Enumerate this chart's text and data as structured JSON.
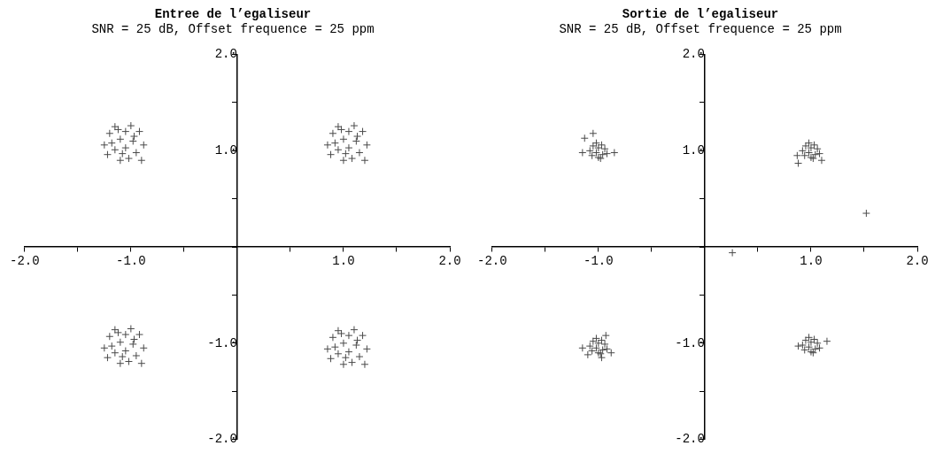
{
  "chart_data": [
    {
      "type": "scatter",
      "title": "Entree de l’egaliseur",
      "subtitle": "SNR = 25 dB, Offset frequence = 25 ppm",
      "marker": "cross",
      "xlim": [
        -2,
        2
      ],
      "ylim": [
        -2,
        2
      ],
      "xticks": [
        {
          "value": -2,
          "label": "-2.0"
        },
        {
          "value": -1.5,
          "label": null
        },
        {
          "value": -1,
          "label": "-1.0"
        },
        {
          "value": -0.5,
          "label": null
        },
        {
          "value": 0,
          "label": null
        },
        {
          "value": 0.5,
          "label": null
        },
        {
          "value": 1,
          "label": "1.0"
        },
        {
          "value": 1.5,
          "label": null
        },
        {
          "value": 2,
          "label": "2.0"
        }
      ],
      "yticks": [
        {
          "value": -2,
          "label": "-2.0"
        },
        {
          "value": -1.5,
          "label": null
        },
        {
          "value": -1,
          "label": "-1.0"
        },
        {
          "value": -0.5,
          "label": null
        },
        {
          "value": 0,
          "label": null
        },
        {
          "value": 0.5,
          "label": null
        },
        {
          "value": 1,
          "label": "1.0"
        },
        {
          "value": 1.5,
          "label": null
        },
        {
          "value": 2,
          "label": "2.0"
        }
      ],
      "series": [
        {
          "color": "#4a4a4a",
          "x": [
            -1.25,
            -1.22,
            -1.2,
            -1.15,
            -1.15,
            -1.1,
            -1.1,
            -1.05,
            -1.05,
            -1.02,
            -1,
            -0.98,
            -0.95,
            -0.92,
            -0.9,
            -0.88,
            -1.18,
            -1.08,
            -0.97,
            -1.12,
            0.85,
            0.88,
            0.9,
            0.95,
            0.95,
            1,
            1,
            1.05,
            1.05,
            1.08,
            1.1,
            1.12,
            1.15,
            1.18,
            1.2,
            1.22,
            0.92,
            1.02,
            1.13,
            0.98,
            -1.25,
            -1.22,
            -1.2,
            -1.15,
            -1.15,
            -1.1,
            -1.1,
            -1.05,
            -1.05,
            -1.02,
            -1,
            -0.98,
            -0.95,
            -0.92,
            -0.9,
            -0.88,
            -1.18,
            -1.08,
            -0.97,
            -1.12,
            0.85,
            0.88,
            0.9,
            0.95,
            0.95,
            1,
            1,
            1.05,
            1.05,
            1.08,
            1.1,
            1.12,
            1.15,
            1.18,
            1.2,
            1.22,
            0.92,
            1.02,
            1.13,
            0.98
          ],
          "values": [
            1.06,
            0.96,
            1.18,
            1.25,
            1.01,
            0.9,
            1.12,
            1.2,
            1.03,
            0.92,
            1.26,
            1.1,
            0.98,
            1.2,
            0.9,
            1.06,
            1.08,
            0.97,
            1.15,
            1.22,
            1.06,
            0.96,
            1.18,
            1.25,
            1.01,
            0.9,
            1.12,
            1.2,
            1.03,
            0.92,
            1.26,
            1.1,
            0.98,
            1.2,
            0.9,
            1.06,
            1.08,
            0.97,
            1.15,
            1.22,
            -1.05,
            -1.15,
            -0.93,
            -0.86,
            -1.1,
            -1.21,
            -0.99,
            -0.91,
            -1.08,
            -1.19,
            -0.85,
            -1.01,
            -1.13,
            -0.91,
            -1.21,
            -1.05,
            -1.03,
            -1.14,
            -0.96,
            -0.89,
            -1.06,
            -1.16,
            -0.94,
            -0.87,
            -1.11,
            -1.22,
            -1,
            -0.92,
            -1.09,
            -1.2,
            -0.86,
            -1.02,
            -1.14,
            -0.92,
            -1.22,
            -1.06,
            -1.04,
            -1.15,
            -0.97,
            -0.9
          ]
        }
      ]
    },
    {
      "type": "scatter",
      "title": "Sortie de l’egaliseur",
      "subtitle": "SNR = 25 dB, Offset frequence = 25 ppm",
      "marker": "cross",
      "xlim": [
        -2,
        2
      ],
      "ylim": [
        -2,
        2
      ],
      "xticks": [
        {
          "value": -2,
          "label": "-2.0"
        },
        {
          "value": -1.5,
          "label": null
        },
        {
          "value": -1,
          "label": "-1.0"
        },
        {
          "value": -0.5,
          "label": null
        },
        {
          "value": 0,
          "label": null
        },
        {
          "value": 0.5,
          "label": null
        },
        {
          "value": 1,
          "label": "1.0"
        },
        {
          "value": 1.5,
          "label": null
        },
        {
          "value": 2,
          "label": "2.0"
        }
      ],
      "yticks": [
        {
          "value": -2,
          "label": "-2.0"
        },
        {
          "value": -1.5,
          "label": null
        },
        {
          "value": -1,
          "label": "-1.0"
        },
        {
          "value": -0.5,
          "label": null
        },
        {
          "value": 0,
          "label": null
        },
        {
          "value": 0.5,
          "label": null
        },
        {
          "value": 1,
          "label": "1.0"
        },
        {
          "value": 1.5,
          "label": null
        },
        {
          "value": 2,
          "label": "2.0"
        }
      ],
      "series": [
        {
          "color": "#4a4a4a",
          "x": [
            -1.08,
            -1.06,
            -1.05,
            -1.02,
            -1.02,
            -1,
            -1,
            -0.97,
            -0.96,
            -0.94,
            -0.92,
            -0.98,
            -1.13,
            -1.15,
            -0.85,
            -1.05,
            0.92,
            0.94,
            0.95,
            0.98,
            0.98,
            1,
            1,
            1.03,
            1.04,
            1.06,
            1.08,
            1.02,
            0.88,
            1.1,
            0.87,
            -1.08,
            -1.06,
            -1.05,
            -1.02,
            -1.02,
            -1,
            -1,
            -0.97,
            -0.96,
            -0.94,
            -0.92,
            -0.98,
            -1.15,
            -1.1,
            -0.88,
            -0.93,
            -0.97,
            0.92,
            0.94,
            0.95,
            0.98,
            0.98,
            1,
            1,
            1.03,
            1.04,
            1.06,
            1.08,
            1.02,
            0.88,
            1.15,
            1.52,
            0.26
          ],
          "values": [
            1,
            0.95,
            1.05,
            1.08,
            0.98,
            0.93,
            1.03,
            1.06,
            0.96,
            1.02,
            0.97,
            0.92,
            1.13,
            0.98,
            0.98,
            1.18,
            1,
            0.95,
            1.05,
            1.08,
            0.98,
            0.93,
            1.03,
            1.06,
            0.96,
            1.02,
            0.97,
            0.92,
            0.87,
            0.9,
            0.95,
            -1.03,
            -1.08,
            -0.98,
            -0.95,
            -1.05,
            -1.1,
            -1,
            -0.97,
            -1.07,
            -1.01,
            -1.06,
            -1.11,
            -1.05,
            -1.12,
            -1.1,
            -0.92,
            -1.15,
            -1.02,
            -1.07,
            -0.97,
            -0.94,
            -1.04,
            -1.09,
            -0.99,
            -0.96,
            -1.06,
            -1,
            -1.05,
            -1.1,
            -1.03,
            -0.98,
            0.35,
            -0.06
          ]
        }
      ]
    }
  ]
}
